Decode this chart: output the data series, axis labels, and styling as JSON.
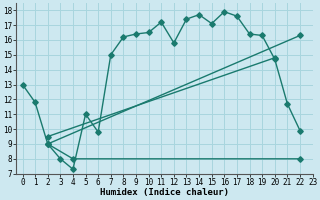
{
  "xlabel": "Humidex (Indice chaleur)",
  "background_color": "#cde8f0",
  "grid_color": "#a8d5de",
  "line_color": "#1a7a6e",
  "xlim": [
    -0.5,
    23
  ],
  "ylim": [
    7,
    18.5
  ],
  "xticks": [
    0,
    1,
    2,
    3,
    4,
    5,
    6,
    7,
    8,
    9,
    10,
    11,
    12,
    13,
    14,
    15,
    16,
    17,
    18,
    19,
    20,
    21,
    22,
    23
  ],
  "yticks": [
    7,
    8,
    9,
    10,
    11,
    12,
    13,
    14,
    15,
    16,
    17,
    18
  ],
  "curve1_x": [
    0,
    1,
    2,
    3,
    4,
    5,
    6,
    7,
    8,
    9,
    10,
    11,
    12,
    13,
    14,
    15,
    16,
    17,
    18,
    19,
    20,
    21,
    22
  ],
  "curve1_y": [
    13,
    11.8,
    9.0,
    8.0,
    7.3,
    11.0,
    9.8,
    15.0,
    16.2,
    16.4,
    16.5,
    17.2,
    15.8,
    17.4,
    17.7,
    17.1,
    17.9,
    17.6,
    16.4,
    16.3,
    14.7,
    11.7,
    9.9
  ],
  "curve2_x": [
    2,
    4,
    22
  ],
  "curve2_y": [
    9.0,
    8.0,
    8.0
  ],
  "curve3_x": [
    2,
    22
  ],
  "curve3_y": [
    9.0,
    16.3
  ],
  "curve4_x": [
    2,
    20
  ],
  "curve4_y": [
    9.5,
    14.8
  ]
}
